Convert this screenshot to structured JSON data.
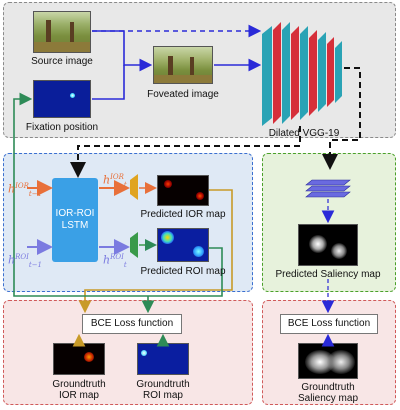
{
  "nodes": {
    "source_image": "Source image",
    "fixation_position": "Fixation position",
    "foveated_image": "Foveated image",
    "dilated_vgg": "Dilated VGG-19",
    "lstm_line1": "IOR-ROI",
    "lstm_line2": "LSTM",
    "predicted_ior": "Predicted IOR map",
    "predicted_roi": "Predicted ROI map",
    "predicted_saliency": "Predicted Saliency map",
    "bce_left": "BCE Loss function",
    "bce_right": "BCE Loss function",
    "gt_ior_line1": "Groundtruth",
    "gt_ior_line2": "IOR map",
    "gt_roi_line1": "Groundtruth",
    "gt_roi_line2": "ROI map",
    "gt_sal_line1": "Groundtruth",
    "gt_sal_line2": "Saliency map"
  },
  "hidden_states": {
    "h": "h",
    "ior_in_sup": "IOR",
    "ior_in_sub": "t−1",
    "ior_out_sup": "IOR",
    "ior_out_sub": "t",
    "roi_in_sup": "ROI",
    "roi_in_sub": "t−1",
    "roi_out_sup": "ROI",
    "roi_out_sub": "t"
  },
  "colors": {
    "top_panel": "#e8e8e8",
    "mid_panel": "#dfe9f5",
    "saliency_panel": "#e7f2dc",
    "loss_panel": "#f8e6e6",
    "lstm_box": "#3aa0e6",
    "ior_arrow": "#e8703a",
    "roi_arrow": "#7b7be0",
    "blue_arrow": "#2a2ad8",
    "green_arrow": "#2e8b57",
    "gold_arrow": "#c89a28",
    "vgg_teal": "#2aa3b5",
    "vgg_red": "#d62f3a"
  }
}
